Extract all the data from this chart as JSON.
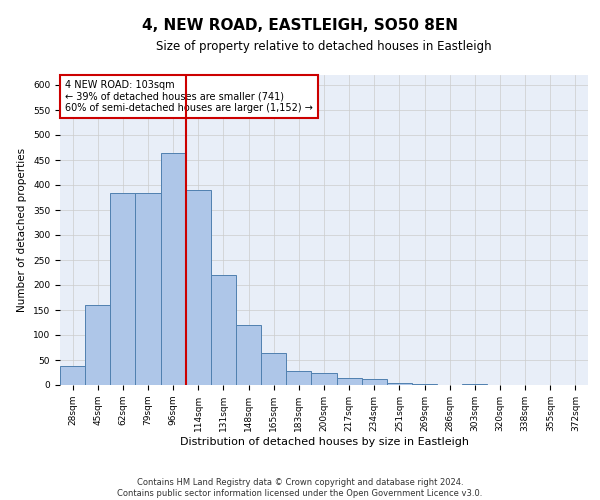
{
  "title": "4, NEW ROAD, EASTLEIGH, SO50 8EN",
  "subtitle": "Size of property relative to detached houses in Eastleigh",
  "xlabel": "Distribution of detached houses by size in Eastleigh",
  "ylabel": "Number of detached properties",
  "categories": [
    "28sqm",
    "45sqm",
    "62sqm",
    "79sqm",
    "96sqm",
    "114sqm",
    "131sqm",
    "148sqm",
    "165sqm",
    "183sqm",
    "200sqm",
    "217sqm",
    "234sqm",
    "251sqm",
    "269sqm",
    "286sqm",
    "303sqm",
    "320sqm",
    "338sqm",
    "355sqm",
    "372sqm"
  ],
  "values": [
    38,
    160,
    385,
    385,
    465,
    390,
    220,
    120,
    65,
    28,
    25,
    15,
    12,
    5,
    3,
    0,
    2,
    0,
    1,
    0,
    0
  ],
  "bar_color": "#aec6e8",
  "bar_edge_color": "#5080b0",
  "grid_color": "#cccccc",
  "vline_color": "#cc0000",
  "annotation_text": "4 NEW ROAD: 103sqm\n← 39% of detached houses are smaller (741)\n60% of semi-detached houses are larger (1,152) →",
  "annotation_box_color": "#ffffff",
  "annotation_box_edge": "#cc0000",
  "footer_line1": "Contains HM Land Registry data © Crown copyright and database right 2024.",
  "footer_line2": "Contains public sector information licensed under the Open Government Licence v3.0.",
  "ylim": [
    0,
    620
  ],
  "bg_color": "#e8eef8",
  "title_fontsize": 11,
  "subtitle_fontsize": 8.5,
  "tick_fontsize": 6.5,
  "ylabel_fontsize": 7.5,
  "xlabel_fontsize": 8,
  "footer_fontsize": 6,
  "annot_fontsize": 7,
  "vline_xindex": 4
}
